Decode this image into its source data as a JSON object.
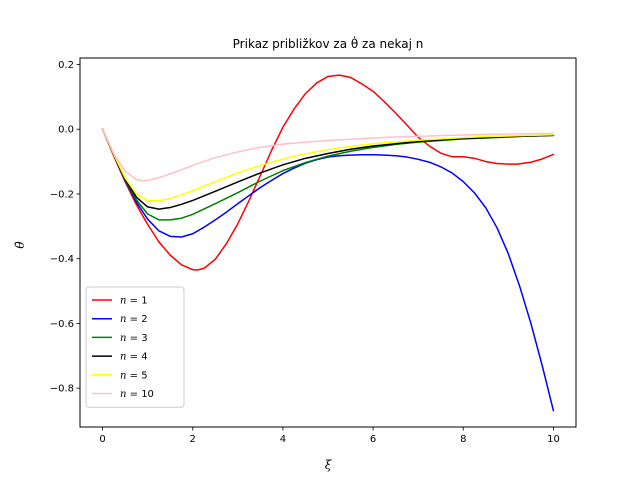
{
  "chart_data": {
    "type": "line",
    "title": "Prikaz približkov za θ̇ za nekaj n",
    "xlabel": "ξ",
    "ylabel": "θ̇",
    "xlim": [
      -0.5,
      10.5
    ],
    "ylim": [
      -0.92,
      0.22
    ],
    "xticks": [
      0,
      2,
      4,
      6,
      8,
      10
    ],
    "xtick_labels": [
      "0",
      "2",
      "4",
      "6",
      "8",
      "10"
    ],
    "yticks": [
      0.2,
      0.0,
      -0.2,
      -0.4,
      -0.6,
      -0.8
    ],
    "ytick_labels": [
      "0.2",
      "0.0",
      "−0.2",
      "−0.4",
      "−0.6",
      "−0.8"
    ],
    "grid": false,
    "legend_position": "lower-left",
    "series": [
      {
        "name": "n = 1",
        "name_var": "n",
        "name_value": "= 1",
        "color": "#ff0000",
        "x": [
          0,
          0.25,
          0.5,
          0.75,
          1.0,
          1.25,
          1.5,
          1.75,
          2.0,
          2.1,
          2.25,
          2.5,
          2.75,
          3.0,
          3.25,
          3.5,
          3.75,
          4.0,
          4.25,
          4.5,
          4.75,
          5.0,
          5.25,
          5.5,
          5.75,
          6.0,
          6.25,
          6.5,
          6.75,
          7.0,
          7.25,
          7.5,
          7.75,
          8.0,
          8.25,
          8.5,
          8.75,
          9.0,
          9.2,
          9.5,
          9.75,
          10.0
        ],
        "y": [
          0.0,
          -0.083,
          -0.162,
          -0.233,
          -0.294,
          -0.348,
          -0.389,
          -0.419,
          -0.434,
          -0.435,
          -0.43,
          -0.402,
          -0.353,
          -0.292,
          -0.22,
          -0.143,
          -0.065,
          0.006,
          0.063,
          0.11,
          0.143,
          0.163,
          0.167,
          0.16,
          0.14,
          0.117,
          0.085,
          0.05,
          0.013,
          -0.025,
          -0.052,
          -0.074,
          -0.085,
          -0.085,
          -0.09,
          -0.1,
          -0.106,
          -0.108,
          -0.108,
          -0.102,
          -0.092,
          -0.078
        ]
      },
      {
        "name": "n = 2",
        "name_var": "n",
        "name_value": "= 2",
        "color": "#0000ff",
        "x": [
          0,
          0.25,
          0.5,
          0.75,
          1.0,
          1.25,
          1.5,
          1.75,
          2.0,
          2.25,
          2.5,
          2.75,
          3.0,
          3.25,
          3.5,
          3.75,
          4.0,
          4.25,
          4.5,
          4.75,
          5.0,
          5.25,
          5.5,
          5.75,
          6.0,
          6.25,
          6.5,
          6.75,
          7.0,
          7.25,
          7.5,
          7.75,
          8.0,
          8.25,
          8.5,
          8.75,
          9.0,
          9.25,
          9.5,
          9.75,
          10.0
        ],
        "y": [
          0.0,
          -0.08,
          -0.158,
          -0.225,
          -0.278,
          -0.314,
          -0.331,
          -0.333,
          -0.323,
          -0.303,
          -0.28,
          -0.256,
          -0.23,
          -0.205,
          -0.18,
          -0.158,
          -0.137,
          -0.12,
          -0.105,
          -0.094,
          -0.086,
          -0.082,
          -0.08,
          -0.079,
          -0.079,
          -0.08,
          -0.082,
          -0.086,
          -0.093,
          -0.102,
          -0.116,
          -0.135,
          -0.162,
          -0.197,
          -0.243,
          -0.305,
          -0.385,
          -0.485,
          -0.6,
          -0.73,
          -0.87
        ]
      },
      {
        "name": "n = 3",
        "name_var": "n",
        "name_value": "= 3",
        "color": "#008000",
        "x": [
          0,
          0.25,
          0.5,
          0.75,
          1.0,
          1.25,
          1.5,
          1.75,
          2.0,
          2.5,
          3.0,
          3.5,
          4.0,
          4.5,
          5.0,
          5.5,
          6.0,
          6.5,
          7.0,
          7.5,
          8.0,
          8.5,
          9.0,
          9.5,
          10.0
        ],
        "y": [
          0.0,
          -0.079,
          -0.155,
          -0.218,
          -0.262,
          -0.28,
          -0.28,
          -0.275,
          -0.263,
          -0.23,
          -0.196,
          -0.16,
          -0.128,
          -0.103,
          -0.083,
          -0.068,
          -0.056,
          -0.047,
          -0.04,
          -0.035,
          -0.03,
          -0.027,
          -0.024,
          -0.021,
          -0.019
        ]
      },
      {
        "name": "n = 4",
        "name_var": "n",
        "name_value": "= 4",
        "color": "#000000",
        "x": [
          0,
          0.25,
          0.5,
          0.75,
          1.0,
          1.25,
          1.5,
          1.75,
          2.0,
          2.5,
          3.0,
          3.5,
          4.0,
          4.5,
          5.0,
          5.5,
          6.0,
          6.5,
          7.0,
          7.5,
          8.0,
          8.5,
          9.0,
          9.5,
          10.0
        ],
        "y": [
          0.0,
          -0.079,
          -0.153,
          -0.21,
          -0.24,
          -0.247,
          -0.242,
          -0.232,
          -0.22,
          -0.192,
          -0.163,
          -0.135,
          -0.11,
          -0.09,
          -0.075,
          -0.062,
          -0.052,
          -0.045,
          -0.038,
          -0.033,
          -0.029,
          -0.026,
          -0.023,
          -0.021,
          -0.019
        ]
      },
      {
        "name": "n = 5",
        "name_var": "n",
        "name_value": "= 5",
        "color": "#ffff00",
        "x": [
          0,
          0.25,
          0.5,
          0.75,
          1.0,
          1.25,
          1.5,
          1.75,
          2.0,
          2.5,
          3.0,
          3.5,
          4.0,
          4.5,
          5.0,
          5.5,
          6.0,
          6.5,
          7.0,
          7.5,
          8.0,
          8.5,
          9.0,
          9.5,
          10.0
        ],
        "y": [
          0.0,
          -0.078,
          -0.15,
          -0.2,
          -0.22,
          -0.221,
          -0.214,
          -0.203,
          -0.19,
          -0.162,
          -0.135,
          -0.112,
          -0.092,
          -0.076,
          -0.063,
          -0.053,
          -0.045,
          -0.039,
          -0.034,
          -0.03,
          -0.026,
          -0.023,
          -0.021,
          -0.019,
          -0.017
        ]
      },
      {
        "name": "n = 10",
        "name_var": "n",
        "name_value": "= 10",
        "color": "#ffc0cb",
        "x": [
          0,
          0.25,
          0.5,
          0.75,
          0.9,
          1.0,
          1.25,
          1.5,
          2.0,
          2.5,
          3.0,
          3.5,
          4.0,
          4.5,
          5.0,
          5.5,
          6.0,
          6.5,
          7.0,
          7.5,
          8.0,
          8.5,
          9.0,
          9.5,
          10.0
        ],
        "y": [
          0.0,
          -0.075,
          -0.13,
          -0.155,
          -0.16,
          -0.158,
          -0.15,
          -0.138,
          -0.112,
          -0.088,
          -0.07,
          -0.056,
          -0.046,
          -0.04,
          -0.035,
          -0.031,
          -0.027,
          -0.024,
          -0.022,
          -0.02,
          -0.018,
          -0.016,
          -0.015,
          -0.014,
          -0.013
        ]
      }
    ]
  }
}
